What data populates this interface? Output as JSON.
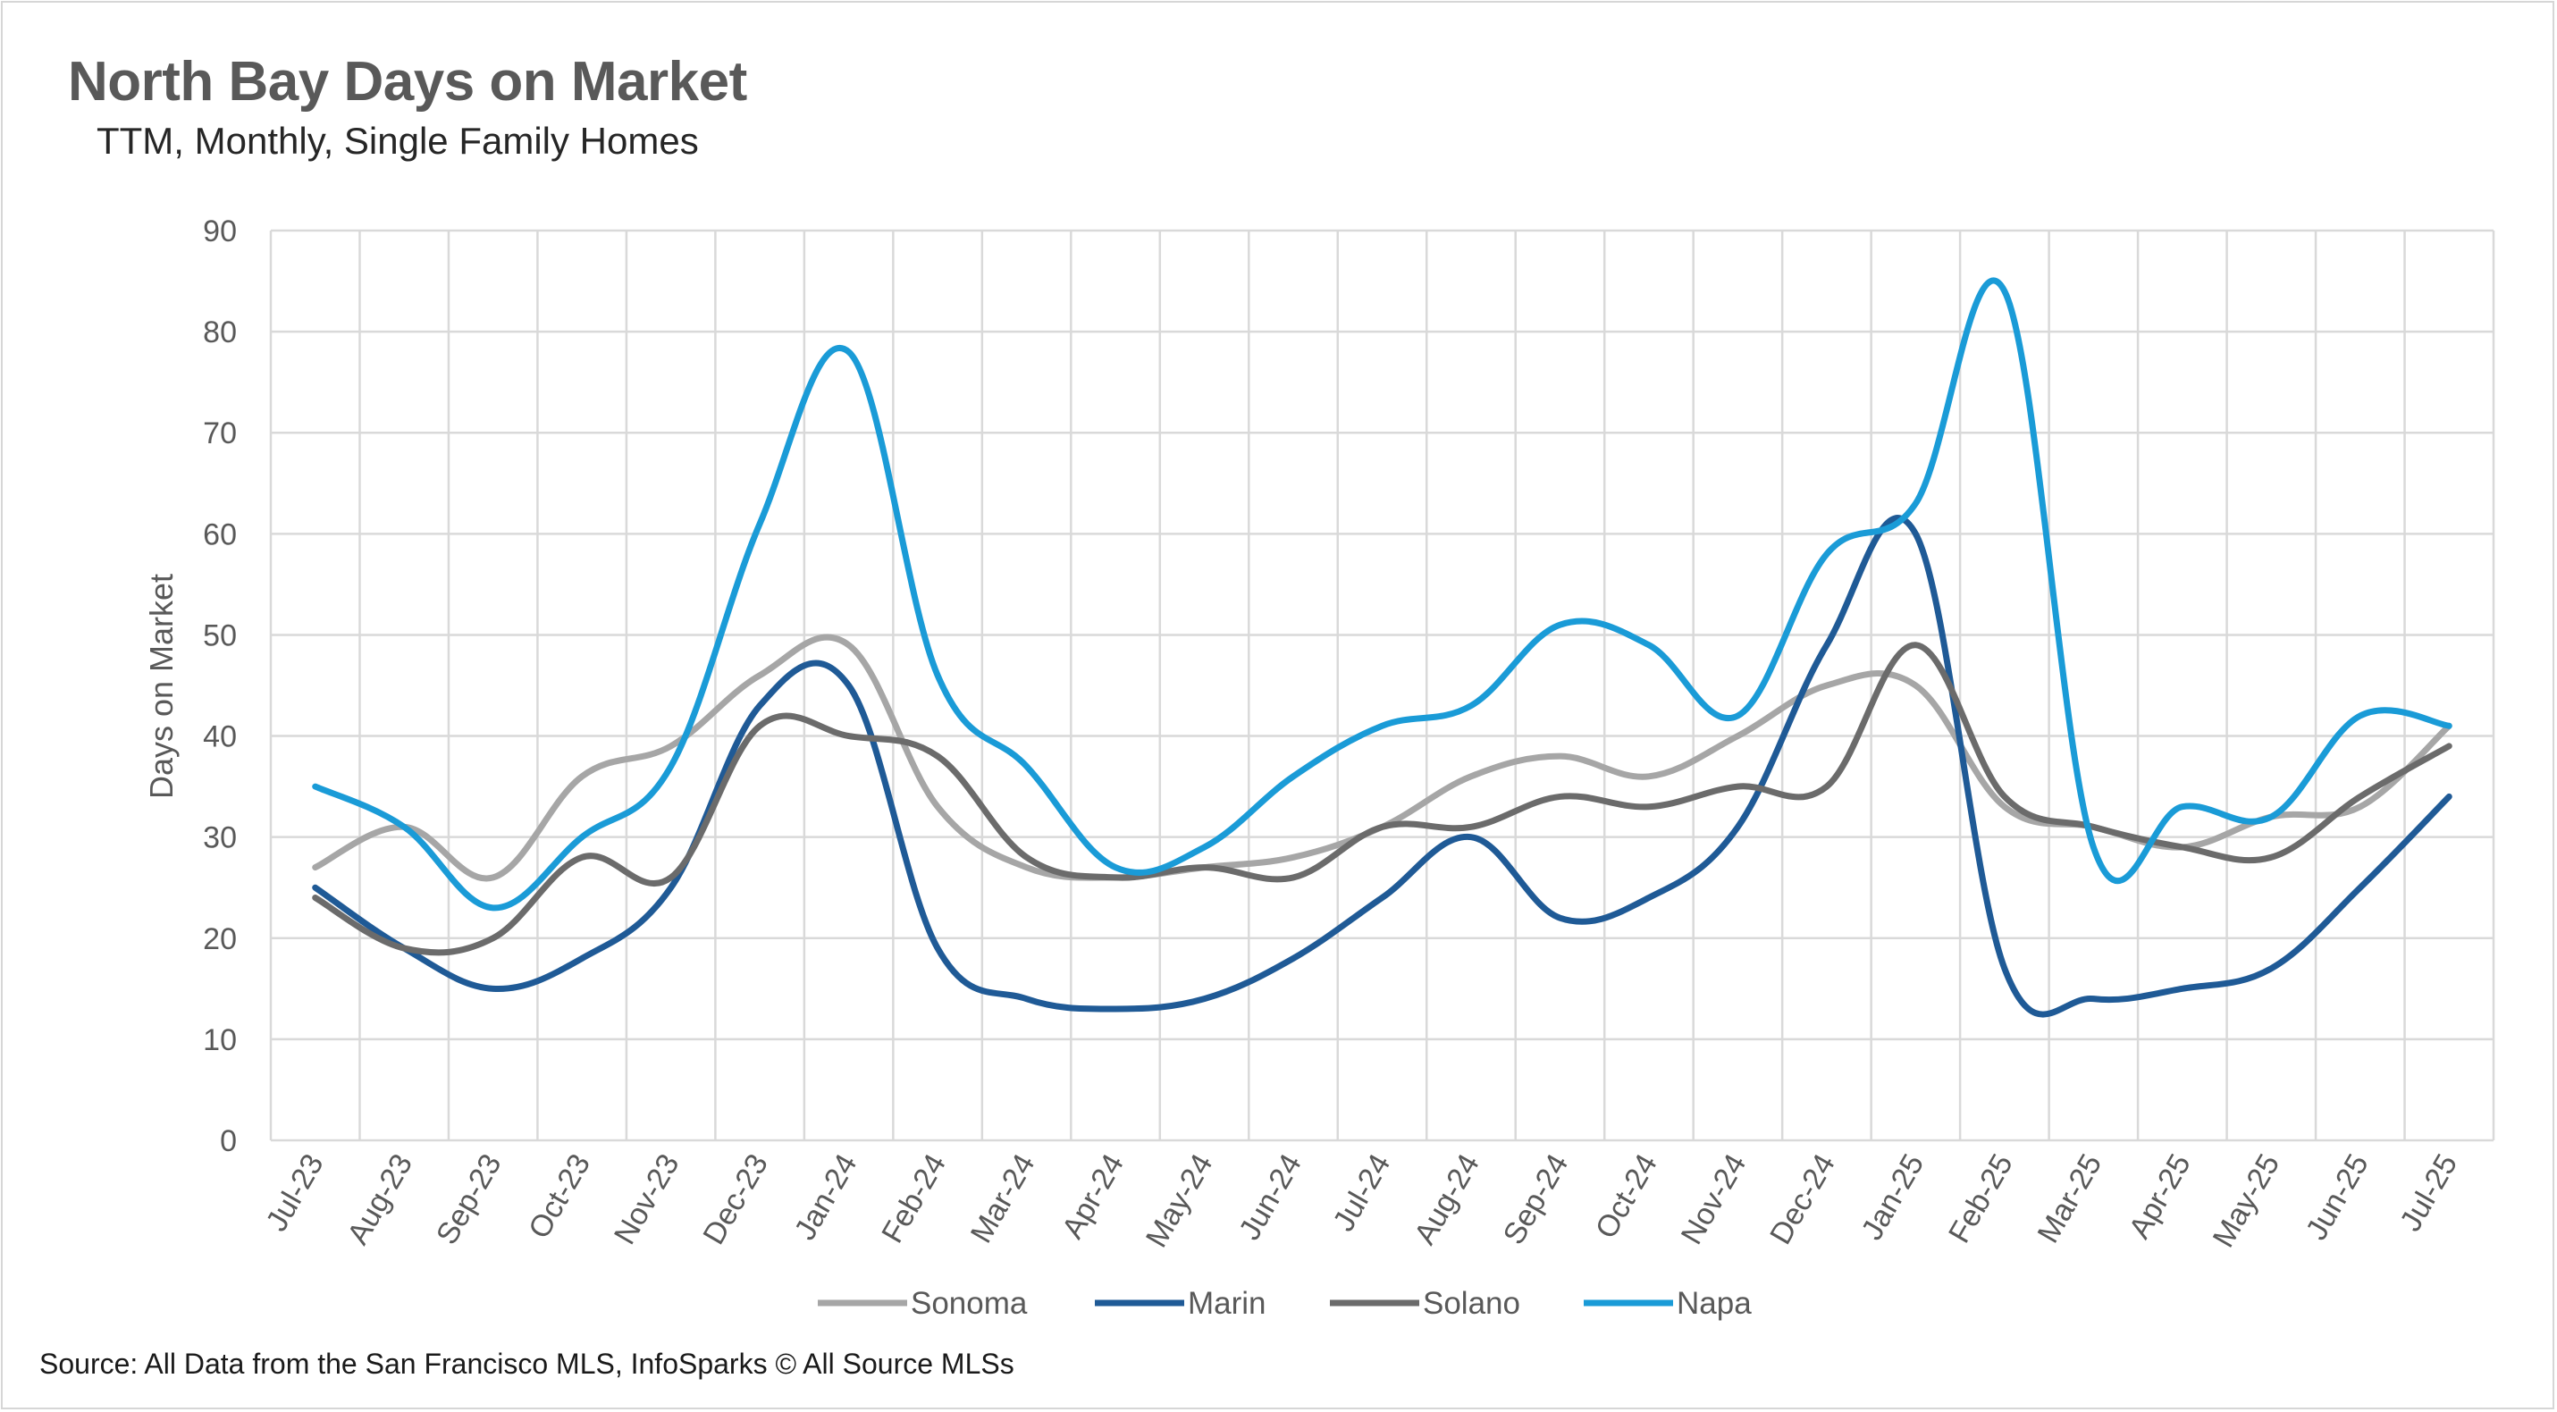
{
  "title": "North Bay Days on Market",
  "subtitle": "TTM, Monthly, Single Family Homes",
  "source": "Source: All Data from the San Francisco MLS, InfoSparks © All Source MLSs",
  "chart_data": {
    "type": "line",
    "title": "North Bay Days on Market",
    "subtitle": "TTM, Monthly, Single Family Homes",
    "xlabel": "",
    "ylabel": "Days on Market",
    "ylim": [
      0,
      90
    ],
    "yticks": [
      0,
      10,
      20,
      30,
      40,
      50,
      60,
      70,
      80,
      90
    ],
    "grid": true,
    "legend": "bottom",
    "categories": [
      "Jul-23",
      "Aug-23",
      "Sep-23",
      "Oct-23",
      "Nov-23",
      "Dec-23",
      "Jan-24",
      "Feb-24",
      "Mar-24",
      "Apr-24",
      "May-24",
      "Jun-24",
      "Jul-24",
      "Aug-24",
      "Sep-24",
      "Oct-24",
      "Nov-24",
      "Dec-24",
      "Jan-25",
      "Feb-25",
      "Mar-25",
      "Apr-25",
      "May-25",
      "Jun-25",
      "Jul-25"
    ],
    "series": [
      {
        "name": "Sonoma",
        "color": "#a6a6a6",
        "values": [
          27,
          31,
          26,
          36,
          39,
          46,
          49,
          33,
          27,
          26,
          27,
          28,
          31,
          36,
          38,
          36,
          40,
          45,
          45,
          33,
          31,
          29,
          32,
          33,
          41
        ]
      },
      {
        "name": "Marin",
        "color": "#1f5a96",
        "values": [
          25,
          19,
          15,
          18,
          25,
          43,
          45,
          19,
          14,
          13,
          14,
          18,
          24,
          30,
          22,
          24,
          31,
          49,
          60,
          17,
          14,
          15,
          17,
          25,
          34
        ]
      },
      {
        "name": "Solano",
        "color": "#6b6b6b",
        "values": [
          24,
          19,
          20,
          28,
          26,
          41,
          40,
          38,
          28,
          26,
          27,
          26,
          31,
          31,
          34,
          33,
          35,
          35,
          49,
          34,
          31,
          29,
          28,
          34,
          39
        ]
      },
      {
        "name": "Napa",
        "color": "#1a9bd7",
        "values": [
          35,
          31,
          23,
          30,
          37,
          61,
          78,
          46,
          37,
          27,
          29,
          36,
          41,
          43,
          51,
          49,
          42,
          58,
          63,
          84,
          29,
          33,
          32,
          42,
          41
        ]
      }
    ]
  }
}
